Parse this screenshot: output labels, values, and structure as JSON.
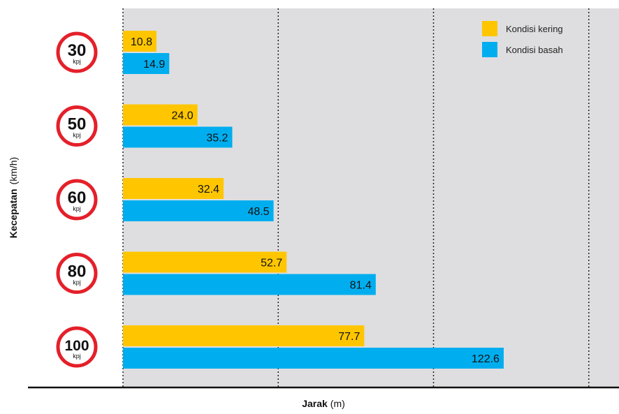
{
  "chart_data": {
    "type": "bar",
    "orientation": "horizontal",
    "categories": [
      "30",
      "50",
      "60",
      "80",
      "100"
    ],
    "category_unit": "kpj",
    "series": [
      {
        "name": "Kondisi kering",
        "values": [
          10.8,
          24.0,
          32.4,
          52.7,
          77.7
        ],
        "color": "#FFC600"
      },
      {
        "name": "Kondisi basah",
        "values": [
          14.9,
          35.2,
          48.5,
          81.4,
          122.6
        ],
        "color": "#00AEEF"
      }
    ],
    "value_labels": [
      [
        "10.8",
        "24.0",
        "32.4",
        "52.7",
        "77.7"
      ],
      [
        "14.9",
        "35.2",
        "48.5",
        "81.4",
        "122.6"
      ]
    ],
    "xlabel_bold": "Jarak",
    "xlabel_unit": "(m)",
    "ylabel_bold": "Kecepatan",
    "ylabel_unit": "(km/h)",
    "xlim": [
      0,
      150
    ],
    "grid": true,
    "legend_position": "top-right",
    "plot_background": "#DEDEE0",
    "sign_ring_color": "#E4202A"
  }
}
